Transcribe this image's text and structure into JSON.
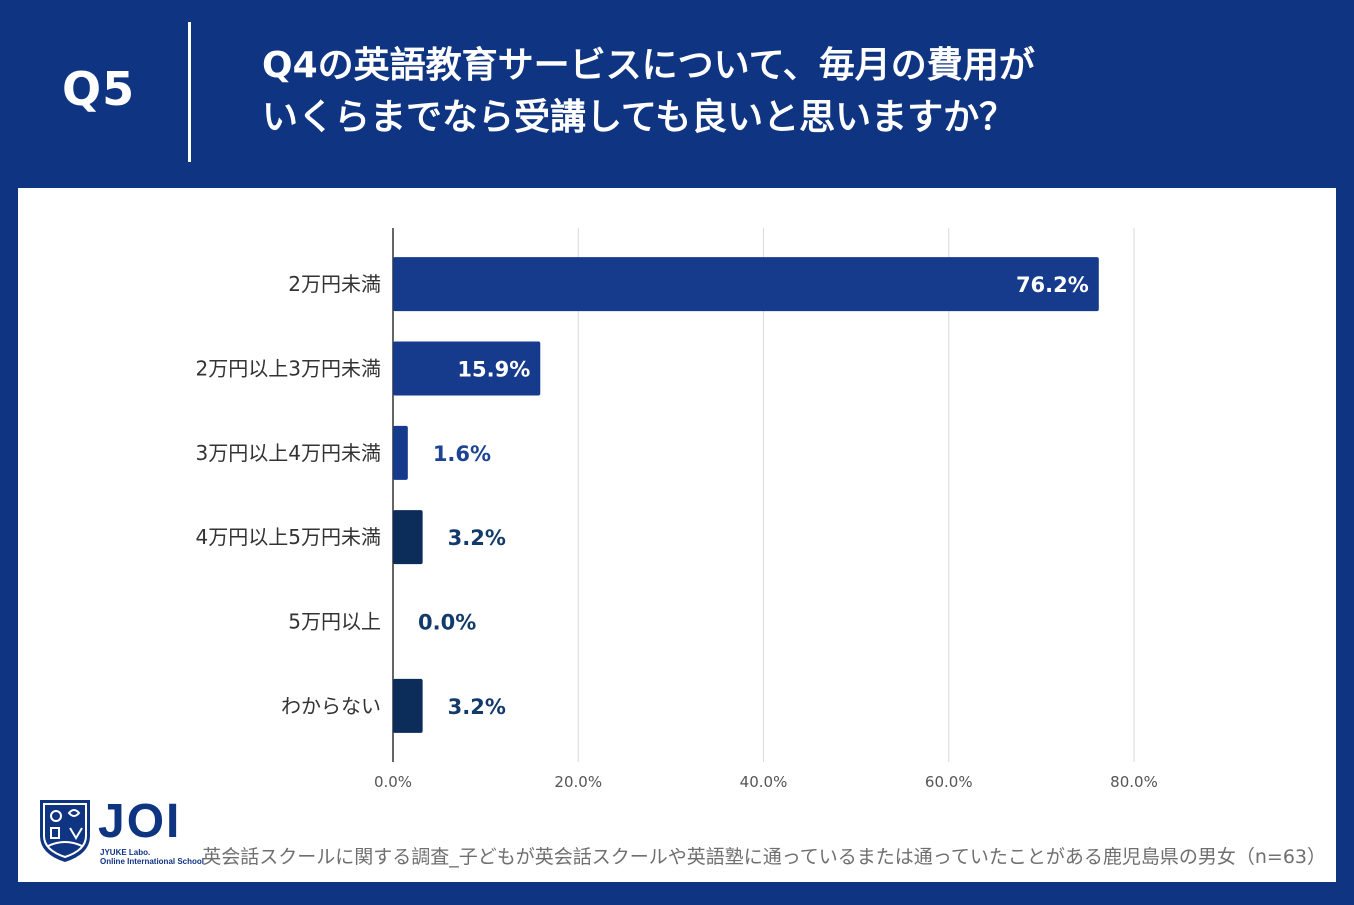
{
  "header": {
    "q_label": "Q5",
    "question_line1": "Q4の英語教育サービスについて、毎月の費用が",
    "question_line2": "いくらまでなら受講しても良いと思いますか？"
  },
  "colors": {
    "background": "#0f3482",
    "bar_primary": "#163a8c",
    "bar_dark": "#0c2d5a",
    "label_blue": "#1d4493",
    "label_dark": "#123a6a",
    "grid": "#d9d9d9"
  },
  "chart_data": {
    "type": "bar",
    "orientation": "horizontal",
    "categories": [
      "2万円未満",
      "2万円以上3万円未満",
      "3万円以上4万円未満",
      "4万円以上5万円未満",
      "5万円以上",
      "わからない"
    ],
    "values": [
      76.2,
      15.9,
      1.6,
      3.2,
      0.0,
      3.2
    ],
    "data_labels": [
      "76.2%",
      "15.9%",
      "1.6%",
      "3.2%",
      "0.0%",
      "3.2%"
    ],
    "xlim": [
      0,
      80
    ],
    "xticks": [
      "0.0%",
      "20.0%",
      "40.0%",
      "60.0%",
      "80.0%"
    ],
    "grid": true
  },
  "footer": {
    "logo_text": "JOI",
    "logo_sub1": "JYUKE Labo.",
    "logo_sub2": "Online International School",
    "source": "英会話スクールに関する調査_子どもが英会話スクールや英語塾に通っているまたは通っていたことがある鹿児島県の男女（n=63）"
  }
}
